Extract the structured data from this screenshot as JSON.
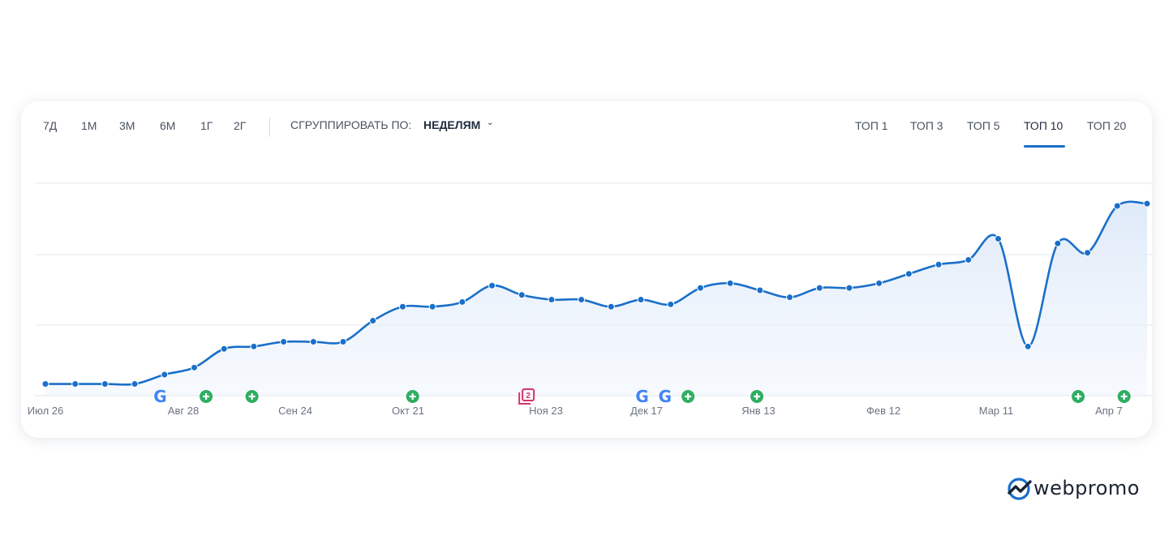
{
  "toolbar": {
    "periods": [
      "7Д",
      "1М",
      "3М",
      "6М",
      "1Г",
      "2Г"
    ],
    "group_label": "СГРУППИРОВАТЬ ПО:",
    "group_value": "НЕДЕЛЯМ",
    "tops": [
      "ТОП 1",
      "ТОП 3",
      "ТОП 5",
      "ТОП 10",
      "ТОП 20"
    ],
    "active_top": "ТОП 10"
  },
  "chart_data": {
    "type": "area",
    "x_tick_labels": [
      "Июл 26",
      "Авг 28",
      "Сен 24",
      "Окт 21",
      "Ноя 23",
      "Дек 17",
      "Янв 13",
      "Фев 12",
      "Мар 11",
      "Апр 7"
    ],
    "series": [
      {
        "color": "#1a6fc9",
        "values": [
          0.5,
          0.5,
          0.5,
          0.5,
          0.9,
          1.2,
          2.0,
          2.1,
          2.3,
          2.3,
          2.3,
          3.2,
          3.8,
          3.8,
          4.0,
          4.7,
          4.3,
          4.1,
          4.1,
          3.8,
          4.1,
          3.9,
          4.6,
          4.8,
          4.5,
          4.2,
          4.6,
          4.6,
          4.8,
          5.2,
          5.6,
          5.8,
          6.7,
          2.1,
          6.5,
          6.1,
          8.1,
          8.2
        ]
      }
    ],
    "ylim": [
      0,
      9
    ],
    "grid": true,
    "events": [
      {
        "type": "google",
        "x_index": 5
      },
      {
        "type": "plus",
        "x_index": 7
      },
      {
        "type": "plus",
        "x_index": 9
      },
      {
        "type": "plus",
        "x_index": 16
      },
      {
        "type": "pages",
        "label": "2",
        "x_index": 21
      },
      {
        "type": "google",
        "x_index": 26
      },
      {
        "type": "google",
        "x_index": 27
      },
      {
        "type": "plus",
        "x_index": 28
      },
      {
        "type": "plus",
        "x_index": 31
      },
      {
        "type": "plus",
        "x_index": 45
      },
      {
        "type": "plus",
        "x_index": 47
      }
    ]
  },
  "brand": {
    "name": "webpromo"
  },
  "colors": {
    "accent": "#1a6fc9",
    "plus": "#2fae62",
    "pages": "#d6336c"
  }
}
